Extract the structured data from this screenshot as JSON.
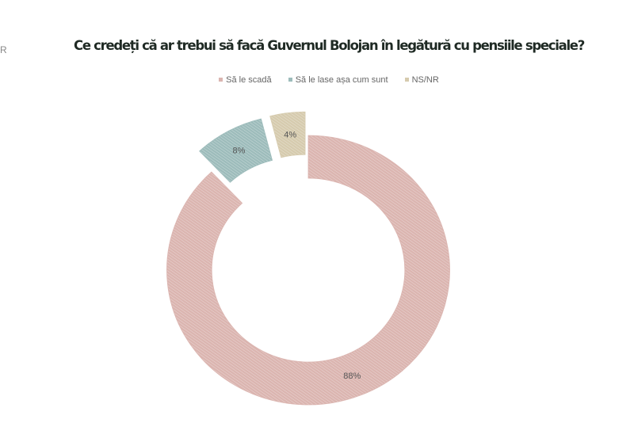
{
  "edge_char": "R",
  "chart_data": {
    "type": "pie",
    "variant": "donut",
    "title": "Ce credeți că ar trebui să facă Guvernul Bolojan în legătură cu pensiile speciale?",
    "legend_position": "top",
    "series": [
      {
        "name": "Să le scadă",
        "value": 88,
        "label": "88%",
        "color": "#dbb5b0",
        "exploded": false
      },
      {
        "name": "Să le lase așa cum sunt",
        "value": 8,
        "label": "8%",
        "color": "#9dbcbb",
        "exploded": true
      },
      {
        "name": "NS/NR",
        "value": 4,
        "label": "4%",
        "color": "#d6cbae",
        "exploded": true
      }
    ]
  }
}
